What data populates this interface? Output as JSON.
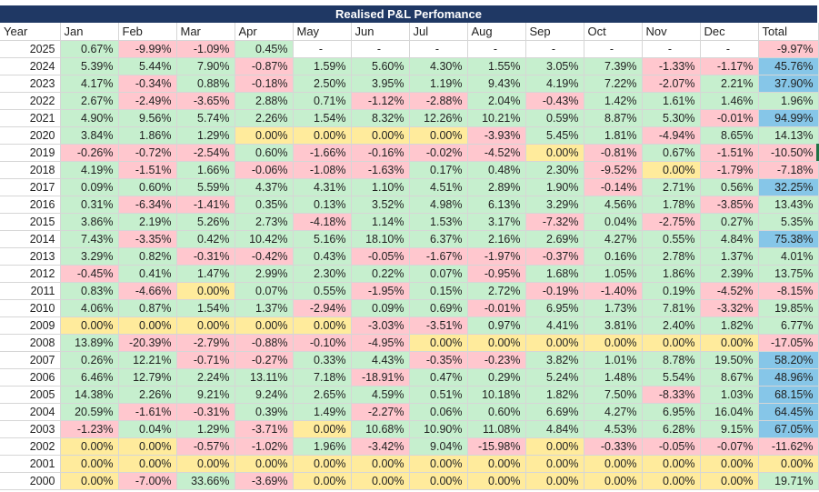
{
  "title": "Realised P&L Perfomance",
  "headers": [
    "Year",
    "Jan",
    "Feb",
    "Mar",
    "Apr",
    "May",
    "Jun",
    "Jul",
    "Aug",
    "Sep",
    "Oct",
    "Nov",
    "Dec",
    "Total"
  ],
  "rows": [
    {
      "year": "2025",
      "values": [
        "0.67%",
        "-9.99%",
        "-1.09%",
        "0.45%",
        "-",
        "-",
        "-",
        "-",
        "-",
        "-",
        "-",
        "-"
      ],
      "total": "-9.97%"
    },
    {
      "year": "2024",
      "values": [
        "5.39%",
        "5.44%",
        "7.90%",
        "-0.87%",
        "1.59%",
        "5.60%",
        "4.30%",
        "1.55%",
        "3.05%",
        "7.39%",
        "-1.33%",
        "-1.17%"
      ],
      "total": "45.76%"
    },
    {
      "year": "2023",
      "values": [
        "4.17%",
        "-0.34%",
        "0.88%",
        "-0.18%",
        "2.50%",
        "3.95%",
        "1.19%",
        "9.43%",
        "4.19%",
        "7.22%",
        "-2.07%",
        "2.21%"
      ],
      "total": "37.90%"
    },
    {
      "year": "2022",
      "values": [
        "2.67%",
        "-2.49%",
        "-3.65%",
        "2.88%",
        "0.71%",
        "-1.12%",
        "-2.88%",
        "2.04%",
        "-0.43%",
        "1.42%",
        "1.61%",
        "1.46%"
      ],
      "total": "1.96%"
    },
    {
      "year": "2021",
      "values": [
        "4.90%",
        "9.56%",
        "5.74%",
        "2.26%",
        "1.54%",
        "8.32%",
        "12.26%",
        "10.21%",
        "0.59%",
        "8.87%",
        "5.30%",
        "-0.01%"
      ],
      "total": "94.99%"
    },
    {
      "year": "2020",
      "values": [
        "3.84%",
        "1.86%",
        "1.29%",
        "0.00%",
        "0.00%",
        "0.00%",
        "0.00%",
        "-3.93%",
        "5.45%",
        "1.81%",
        "-4.94%",
        "8.65%"
      ],
      "total": "14.13%"
    },
    {
      "year": "2019",
      "values": [
        "-0.26%",
        "-0.72%",
        "-2.54%",
        "0.60%",
        "-1.66%",
        "-0.16%",
        "-0.02%",
        "-4.52%",
        "0.00%",
        "-0.81%",
        "0.67%",
        "-1.51%"
      ],
      "total": "-10.50%"
    },
    {
      "year": "2018",
      "values": [
        "4.19%",
        "-1.51%",
        "1.66%",
        "-0.06%",
        "-1.08%",
        "-1.63%",
        "0.17%",
        "0.48%",
        "2.30%",
        "-9.52%",
        "0.00%",
        "-1.79%"
      ],
      "total": "-7.18%"
    },
    {
      "year": "2017",
      "values": [
        "0.09%",
        "0.60%",
        "5.59%",
        "4.37%",
        "4.31%",
        "1.10%",
        "4.51%",
        "2.89%",
        "1.90%",
        "-0.14%",
        "2.71%",
        "0.56%"
      ],
      "total": "32.25%"
    },
    {
      "year": "2016",
      "values": [
        "0.31%",
        "-6.34%",
        "-1.41%",
        "0.35%",
        "0.13%",
        "3.52%",
        "4.98%",
        "6.13%",
        "3.29%",
        "4.56%",
        "1.78%",
        "-3.85%"
      ],
      "total": "13.43%"
    },
    {
      "year": "2015",
      "values": [
        "3.86%",
        "2.19%",
        "5.26%",
        "2.73%",
        "-4.18%",
        "1.14%",
        "1.53%",
        "3.17%",
        "-7.32%",
        "0.04%",
        "-2.75%",
        "0.27%"
      ],
      "total": "5.35%"
    },
    {
      "year": "2014",
      "values": [
        "7.43%",
        "-3.35%",
        "0.42%",
        "10.42%",
        "5.16%",
        "18.10%",
        "6.37%",
        "2.16%",
        "2.69%",
        "4.27%",
        "0.55%",
        "4.84%"
      ],
      "total": "75.38%"
    },
    {
      "year": "2013",
      "values": [
        "3.29%",
        "0.82%",
        "-0.31%",
        "-0.42%",
        "0.43%",
        "-0.05%",
        "-1.67%",
        "-1.97%",
        "-0.37%",
        "0.16%",
        "2.78%",
        "1.37%"
      ],
      "total": "4.01%"
    },
    {
      "year": "2012",
      "values": [
        "-0.45%",
        "0.41%",
        "1.47%",
        "2.99%",
        "2.30%",
        "0.22%",
        "0.07%",
        "-0.95%",
        "1.68%",
        "1.05%",
        "1.86%",
        "2.39%"
      ],
      "total": "13.75%"
    },
    {
      "year": "2011",
      "values": [
        "0.83%",
        "-4.66%",
        "0.00%",
        "0.07%",
        "0.55%",
        "-1.95%",
        "0.15%",
        "2.72%",
        "-0.19%",
        "-1.40%",
        "0.19%",
        "-4.52%"
      ],
      "total": "-8.15%"
    },
    {
      "year": "2010",
      "values": [
        "4.06%",
        "0.87%",
        "1.54%",
        "1.37%",
        "-2.94%",
        "0.09%",
        "0.69%",
        "-0.01%",
        "6.95%",
        "1.73%",
        "7.81%",
        "-3.32%"
      ],
      "total": "19.85%"
    },
    {
      "year": "2009",
      "values": [
        "0.00%",
        "0.00%",
        "0.00%",
        "0.00%",
        "0.00%",
        "-3.03%",
        "-3.51%",
        "0.97%",
        "4.41%",
        "3.81%",
        "2.40%",
        "1.82%"
      ],
      "total": "6.77%"
    },
    {
      "year": "2008",
      "values": [
        "13.89%",
        "-20.39%",
        "-2.79%",
        "-0.88%",
        "-0.10%",
        "-4.95%",
        "0.00%",
        "0.00%",
        "0.00%",
        "0.00%",
        "0.00%",
        "0.00%"
      ],
      "total": "-17.05%"
    },
    {
      "year": "2007",
      "values": [
        "0.26%",
        "12.21%",
        "-0.71%",
        "-0.27%",
        "0.33%",
        "4.43%",
        "-0.35%",
        "-0.23%",
        "3.82%",
        "1.01%",
        "8.78%",
        "19.50%"
      ],
      "total": "58.20%"
    },
    {
      "year": "2006",
      "values": [
        "6.46%",
        "12.79%",
        "2.24%",
        "13.11%",
        "7.18%",
        "-18.91%",
        "0.47%",
        "0.29%",
        "5.24%",
        "1.48%",
        "5.54%",
        "8.67%"
      ],
      "total": "48.96%"
    },
    {
      "year": "2005",
      "values": [
        "14.38%",
        "2.26%",
        "9.21%",
        "9.24%",
        "2.65%",
        "4.59%",
        "0.51%",
        "10.18%",
        "1.82%",
        "7.50%",
        "-8.33%",
        "1.03%"
      ],
      "total": "68.15%"
    },
    {
      "year": "2004",
      "values": [
        "20.59%",
        "-1.61%",
        "-0.31%",
        "0.39%",
        "1.49%",
        "-2.27%",
        "0.06%",
        "0.60%",
        "6.69%",
        "4.27%",
        "6.95%",
        "16.04%"
      ],
      "total": "64.45%"
    },
    {
      "year": "2003",
      "values": [
        "-1.23%",
        "0.04%",
        "1.29%",
        "-3.71%",
        "0.00%",
        "10.68%",
        "10.90%",
        "11.08%",
        "4.84%",
        "4.53%",
        "6.28%",
        "9.15%"
      ],
      "total": "67.05%"
    },
    {
      "year": "2002",
      "values": [
        "0.00%",
        "0.00%",
        "-0.57%",
        "-1.02%",
        "1.96%",
        "-3.42%",
        "9.04%",
        "-15.98%",
        "0.00%",
        "-0.33%",
        "-0.05%",
        "-0.07%"
      ],
      "total": "-11.62%"
    },
    {
      "year": "2001",
      "values": [
        "0.00%",
        "0.00%",
        "0.00%",
        "0.00%",
        "0.00%",
        "0.00%",
        "0.00%",
        "0.00%",
        "0.00%",
        "0.00%",
        "0.00%",
        "0.00%"
      ],
      "total": "0.00%"
    },
    {
      "year": "2000",
      "values": [
        "0.00%",
        "-7.00%",
        "33.66%",
        "-3.69%",
        "0.00%",
        "0.00%",
        "0.00%",
        "0.00%",
        "0.00%",
        "0.00%",
        "0.00%",
        "0.00%"
      ],
      "total": "19.71%"
    }
  ],
  "colors": {
    "title_bg": "#1f3864",
    "positive": "#c6efce",
    "negative": "#ffc7ce",
    "zero": "#ffeb9c",
    "highlight_total": "#86c6e8"
  }
}
